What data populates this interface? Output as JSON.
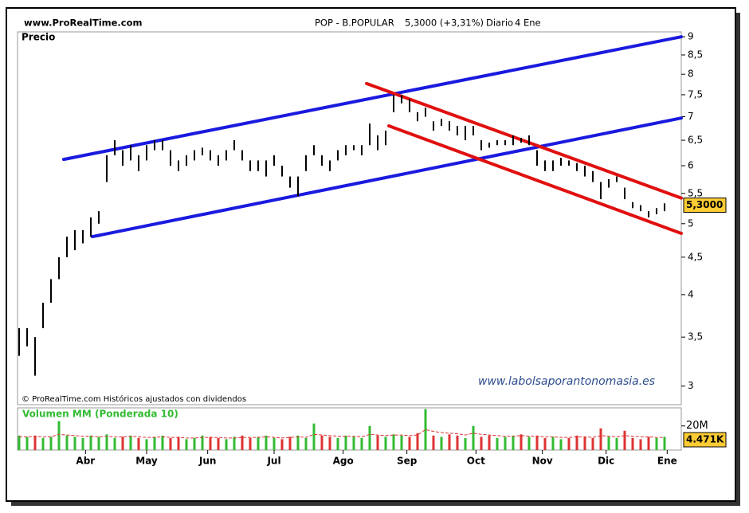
{
  "header": {
    "site": "www.ProRealTime.com",
    "ticker": "POP - B.POPULAR",
    "quote": "5,3000 (+3,31%)",
    "period": "Diario",
    "date": "4 Ene"
  },
  "chart_data": {
    "type": "ohlc",
    "y_label": "Precio",
    "footer_note": "© ProRealTime.com Históricos ajustados con dividendos",
    "watermark": "www.labolsaporantonomasia.es",
    "log": true,
    "xlim": [
      -0.6,
      249.3
    ],
    "ylim": [
      2.83,
      9.14
    ],
    "xticks": [
      {
        "value": 25,
        "label": "Abr"
      },
      {
        "value": 48,
        "label": "May"
      },
      {
        "value": 71,
        "label": "Jun"
      },
      {
        "value": 96,
        "label": "Jul"
      },
      {
        "value": 122,
        "label": "Ago"
      },
      {
        "value": 146,
        "label": "Sep"
      },
      {
        "value": 172,
        "label": "Oct"
      },
      {
        "value": 197,
        "label": "Nov"
      },
      {
        "value": 221,
        "label": "Dic"
      },
      {
        "value": 244,
        "label": "Ene"
      }
    ],
    "yticks": [
      3,
      {
        "value": 3.5,
        "label": "3,5"
      },
      4,
      {
        "value": 4.5,
        "label": "4,5"
      },
      5,
      {
        "value": 5.5,
        "label": "5,5"
      },
      6,
      {
        "value": 6.5,
        "label": "6,5"
      },
      7,
      {
        "value": 7.5,
        "label": "7,5"
      },
      8,
      {
        "value": 8.5,
        "label": "8,5"
      },
      9
    ],
    "last_price": {
      "value": 5.3,
      "label": "5,3000"
    },
    "color": "#000000",
    "x": [
      0,
      3,
      6,
      9,
      12,
      15,
      18,
      21,
      24,
      27,
      30,
      33,
      36,
      39,
      42,
      45,
      48,
      51,
      54,
      57,
      60,
      63,
      66,
      69,
      72,
      75,
      78,
      81,
      84,
      87,
      90,
      93,
      96,
      99,
      102,
      105,
      108,
      111,
      114,
      117,
      120,
      123,
      126,
      129,
      132,
      135,
      138,
      141,
      144,
      147,
      150,
      153,
      156,
      159,
      162,
      165,
      168,
      171,
      174,
      177,
      180,
      183,
      186,
      189,
      192,
      195,
      198,
      201,
      204,
      207,
      210,
      213,
      216,
      219,
      222,
      225,
      228,
      231,
      234,
      237,
      240,
      243
    ],
    "high": [
      3.6,
      3.6,
      3.5,
      3.9,
      4.2,
      4.5,
      4.8,
      4.9,
      4.9,
      5.1,
      5.2,
      6.2,
      6.5,
      6.3,
      6.4,
      6.2,
      6.4,
      6.5,
      6.5,
      6.3,
      6.1,
      6.2,
      6.3,
      6.35,
      6.3,
      6.2,
      6.3,
      6.5,
      6.3,
      6.1,
      6.1,
      6.1,
      6.2,
      6.0,
      5.8,
      5.8,
      6.2,
      6.4,
      6.2,
      6.1,
      6.3,
      6.4,
      6.4,
      6.4,
      6.85,
      6.6,
      6.7,
      7.5,
      7.5,
      7.4,
      7.1,
      7.2,
      6.9,
      6.95,
      6.9,
      6.8,
      6.8,
      6.8,
      6.5,
      6.45,
      6.5,
      6.5,
      6.6,
      6.55,
      6.6,
      6.3,
      6.1,
      6.1,
      6.15,
      6.1,
      6.05,
      6.0,
      5.9,
      5.7,
      5.75,
      5.8,
      5.6,
      5.35,
      5.3,
      5.2,
      5.25,
      5.33
    ],
    "low": [
      3.3,
      3.4,
      3.1,
      3.6,
      3.9,
      4.2,
      4.5,
      4.6,
      4.7,
      4.8,
      5.0,
      5.7,
      6.2,
      6.0,
      6.1,
      5.9,
      6.1,
      6.3,
      6.3,
      6.0,
      5.9,
      6.0,
      6.1,
      6.2,
      6.1,
      6.0,
      6.1,
      6.3,
      6.1,
      5.9,
      5.9,
      5.8,
      6.0,
      5.8,
      5.6,
      5.45,
      5.9,
      6.2,
      6.0,
      5.9,
      6.1,
      6.2,
      6.3,
      6.2,
      6.4,
      6.3,
      6.4,
      7.1,
      7.3,
      7.1,
      6.9,
      7.0,
      6.7,
      6.8,
      6.7,
      6.6,
      6.5,
      6.6,
      6.3,
      6.35,
      6.4,
      6.4,
      6.4,
      6.45,
      6.4,
      6.0,
      5.9,
      5.9,
      6.0,
      6.0,
      5.9,
      5.8,
      5.7,
      5.4,
      5.6,
      5.7,
      5.4,
      5.25,
      5.2,
      5.1,
      5.15,
      5.2
    ],
    "trendlines": [
      {
        "color": "#1a1adf",
        "x": [
          16.8,
          249.3
        ],
        "y": [
          6.12,
          9.0
        ]
      },
      {
        "color": "#1a1adf",
        "x": [
          27.6,
          249.3
        ],
        "y": [
          4.8,
          6.97
        ]
      },
      {
        "color": "#e01010",
        "x": [
          130.8,
          249.3
        ],
        "y": [
          7.77,
          5.42
        ]
      },
      {
        "color": "#e01010",
        "x": [
          139.2,
          249.3
        ],
        "y": [
          6.8,
          4.85
        ]
      }
    ],
    "volume": {
      "title": "Volumen MM (Ponderada 10)",
      "ylim": [
        0,
        35
      ],
      "yticks": [
        {
          "value": 20,
          "label": "20M"
        }
      ],
      "last_label": "4.471K",
      "up_color": "#33bb33",
      "down_color": "#dd3333",
      "ma_color": "#dd3333",
      "values": [
        12,
        11,
        12,
        10,
        11,
        24,
        12,
        11,
        10,
        12,
        11,
        13,
        10,
        11,
        12,
        10,
        9,
        11,
        12,
        10,
        11,
        9,
        10,
        12,
        11,
        10,
        9,
        11,
        12,
        10,
        11,
        12,
        10,
        9,
        11,
        12,
        10,
        22,
        12,
        11,
        10,
        12,
        11,
        10,
        20,
        12,
        11,
        13,
        12,
        11,
        14,
        34,
        12,
        11,
        13,
        12,
        10,
        20,
        11,
        12,
        10,
        11,
        12,
        13,
        11,
        12,
        10,
        11,
        9,
        10,
        12,
        11,
        10,
        18,
        11,
        10,
        16,
        10,
        9,
        11,
        10,
        11
      ],
      "ma": [
        11,
        11,
        11.5,
        11,
        11,
        13,
        12.5,
        12,
        11.5,
        11.5,
        11,
        11.5,
        11,
        11,
        11.5,
        11,
        10.5,
        10.5,
        11,
        10.5,
        10.5,
        10,
        10,
        10.5,
        10.5,
        10.5,
        10,
        10,
        10.5,
        10.5,
        10.5,
        11,
        10.5,
        10,
        10.5,
        11,
        10.5,
        13,
        12.5,
        12,
        11.5,
        11.5,
        11.5,
        11,
        13,
        12.5,
        12,
        12.5,
        12.5,
        12,
        12.5,
        17,
        15.5,
        14.5,
        14,
        13.5,
        12.5,
        14,
        13,
        12.5,
        12,
        11.5,
        11.5,
        12,
        11.5,
        11.5,
        11,
        11,
        10.5,
        10.5,
        11,
        11,
        10.5,
        12,
        11.5,
        11,
        12,
        11.5,
        11,
        11,
        10.5,
        10.5
      ]
    }
  }
}
